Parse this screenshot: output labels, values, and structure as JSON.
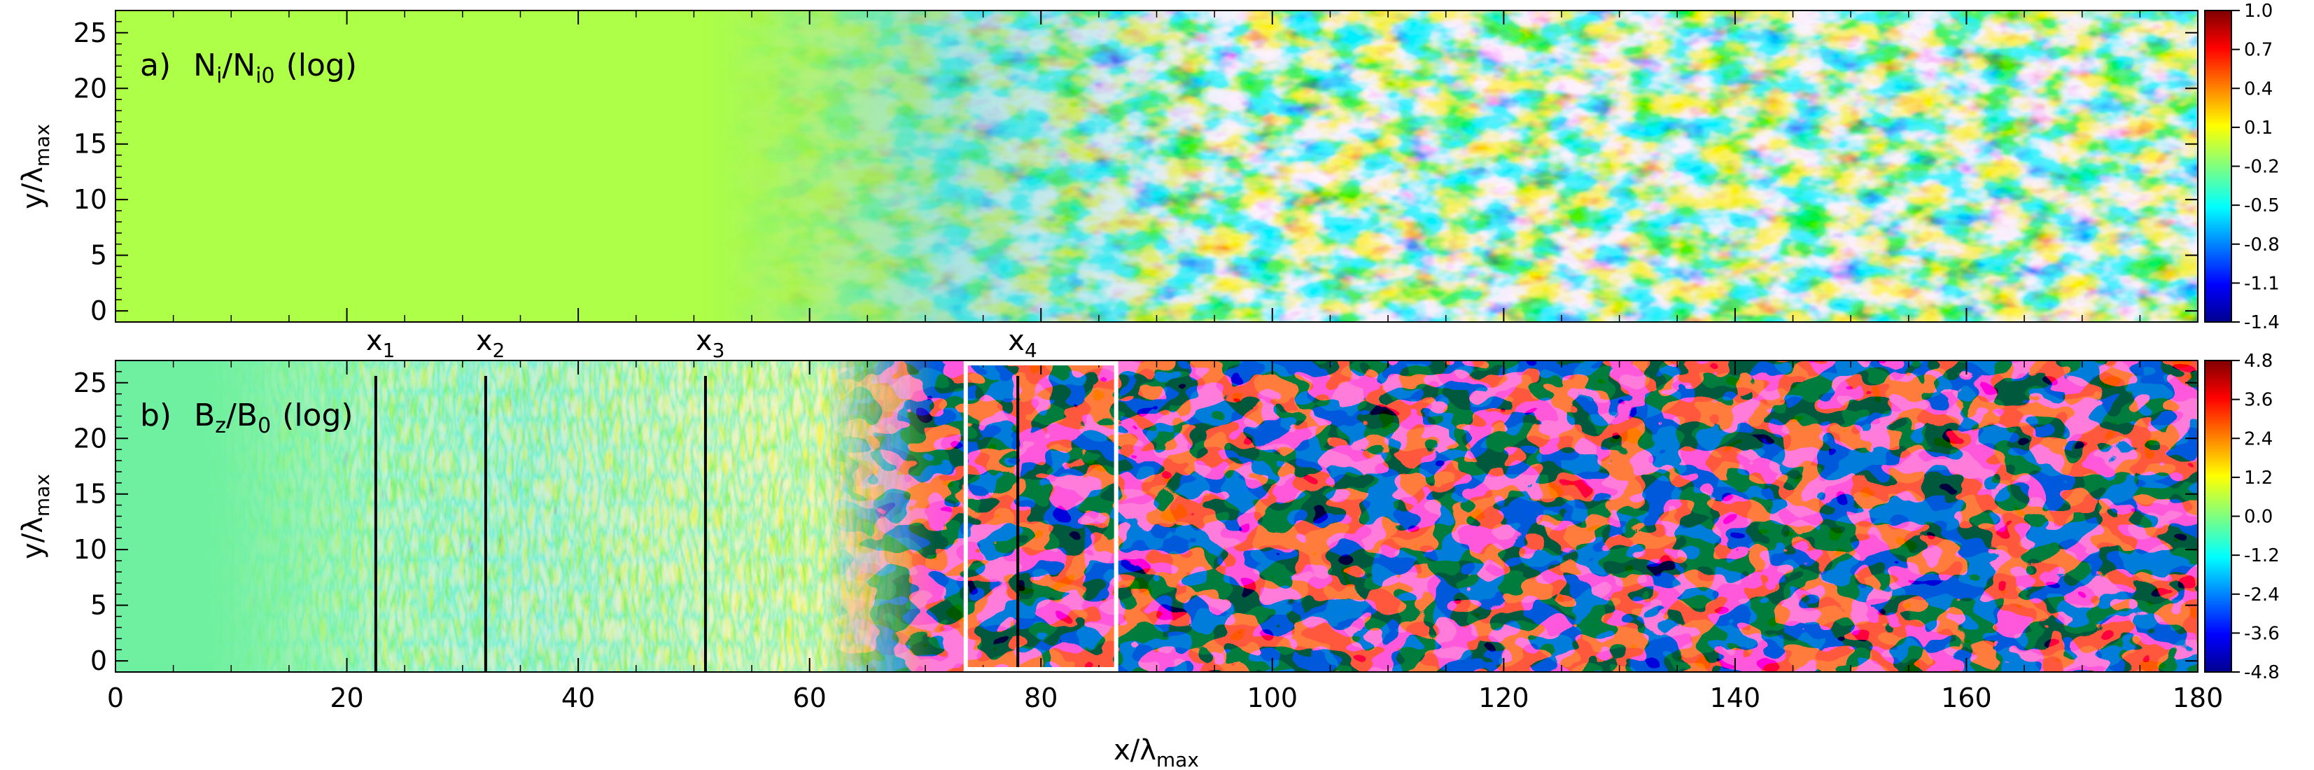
{
  "colors": {
    "uniform_density": "#adff47",
    "uniform_field": "#6ff0a0",
    "box_outline": "#ffffff",
    "marker_line": "#000000"
  },
  "chart_data": [
    {
      "type": "heatmap",
      "panel": "a",
      "panel_label": "a)",
      "quantity_base": "N",
      "quantity_sub": "i",
      "quantity_sep": "/",
      "quantity_base2": "N",
      "quantity_sub2": "i0",
      "scale_note": "(log)",
      "xlim": [
        0,
        180
      ],
      "ylim": [
        -1,
        27
      ],
      "yticks": [
        "0",
        "5",
        "10",
        "15",
        "20",
        "25"
      ],
      "ytick_values": [
        0,
        5,
        10,
        15,
        20,
        25
      ],
      "ylabel": "y/λ",
      "ylabel_sub": "max",
      "colorbar": {
        "ticks": [
          "1.0",
          "0.7",
          "0.4",
          "0.1",
          "-0.2",
          "-0.5",
          "-0.8",
          "-1.1",
          "-1.4"
        ],
        "values": [
          1.0,
          0.7,
          0.4,
          0.1,
          -0.2,
          -0.5,
          -0.8,
          -1.1,
          -1.4
        ],
        "min": -1.4,
        "max": 1.0
      },
      "uniform_region_x": [
        0,
        52
      ],
      "turbulence_onset_x": 69
    },
    {
      "type": "heatmap",
      "panel": "b",
      "panel_label": "b)",
      "quantity_base": "B",
      "quantity_sub": "z",
      "quantity_sep": "/",
      "quantity_base2": "B",
      "quantity_sub2": "0",
      "scale_note": "(log)",
      "xlim": [
        0,
        180
      ],
      "ylim": [
        -1,
        27
      ],
      "yticks": [
        "0",
        "5",
        "10",
        "15",
        "20",
        "25"
      ],
      "ytick_values": [
        0,
        5,
        10,
        15,
        20,
        25
      ],
      "ylabel": "y/λ",
      "ylabel_sub": "max",
      "xticks": [
        "0",
        "20",
        "40",
        "60",
        "80",
        "100",
        "120",
        "140",
        "160",
        "180"
      ],
      "xtick_values": [
        0,
        20,
        40,
        60,
        80,
        100,
        120,
        140,
        160,
        180
      ],
      "xlabel": "x/λ",
      "xlabel_sub": "max",
      "colorbar": {
        "ticks": [
          "4.8",
          "3.6",
          "2.4",
          "1.2",
          "0.0",
          "-1.2",
          "-2.4",
          "-3.6",
          "-4.8"
        ],
        "values": [
          4.8,
          3.6,
          2.4,
          1.2,
          0.0,
          -1.2,
          -2.4,
          -3.6,
          -4.8
        ],
        "min": -4.8,
        "max": 4.8
      },
      "markers": [
        {
          "label": "x",
          "sub": "1",
          "x": 22.5
        },
        {
          "label": "x",
          "sub": "2",
          "x": 32.0
        },
        {
          "label": "x",
          "sub": "3",
          "x": 51.0
        },
        {
          "label": "x",
          "sub": "4",
          "x": 78.0
        }
      ],
      "highlight_box": {
        "x0": 73.5,
        "x1": 86.5,
        "y0": -1,
        "y1": 27
      }
    }
  ]
}
